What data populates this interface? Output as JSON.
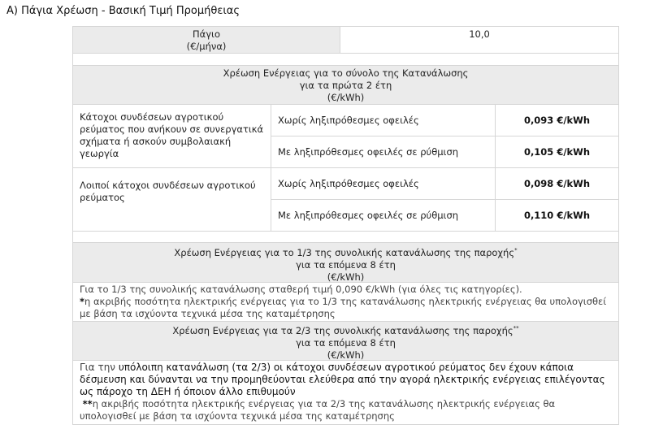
{
  "title": "A) Πάγια Χρέωση - Βασική Τιμή Προμήθειας",
  "fixed": {
    "label1": "Πάγιο",
    "label2": "(€/μήνα)",
    "value": "10,0"
  },
  "section1": {
    "line1": "Χρέωση Ενέργειας για το σύνολο της Κατανάλωσης",
    "line2": "για τα πρώτα 2 έτη",
    "line3": "(€/kWh)"
  },
  "groups": [
    {
      "label": "Κάτοχοι συνδέσεων αγροτικού ρεύματος που ανήκουν σε συνεργατικά σχήματα ή ασκούν συμβολαιακή γεωργία",
      "rows": [
        {
          "desc": "Χωρίς ληξιπρόθεσμες οφειλές",
          "price": "0,093 €/kWh"
        },
        {
          "desc": "Με ληξιπρόθεσμες οφειλές σε ρύθμιση",
          "price": "0,105 €/kWh"
        }
      ]
    },
    {
      "label": "Λοιποί κάτοχοι συνδέσεων αγροτικού ρεύματος",
      "rows": [
        {
          "desc": "Χωρίς ληξιπρόθεσμες οφειλές",
          "price": "0,098 €/kWh"
        },
        {
          "desc": "Με ληξιπρόθεσμες οφειλές σε ρύθμιση",
          "price": "0,110 €/kWh"
        }
      ]
    }
  ],
  "section2": {
    "line1": "Χρέωση Ενέργειας για το 1/3 της συνολικής κατανάλωσης της παροχής",
    "mark": "*",
    "line2": "για τα επόμενα  8 έτη",
    "line3": "(€/kWh)",
    "text": "Για το 1/3 της συνολικής κατανάλωσης σταθερή τιμή 0,090 €/kWh (για όλες τις κατηγορίες).",
    "note_mark": "*",
    "note": "η ακριβής ποσότητα ηλεκτρικής ενέργειας για το 1/3 της κατανάλωσης ηλεκτρικής ενέργειας θα υπολογισθεί με βάση τα ισχύοντα τεχνικά μέσα της καταμέτρησης"
  },
  "section3": {
    "line1": "Χρέωση Ενέργειας για τα 2/3 της συνολικής κατανάλωσης της παροχής",
    "mark": "**",
    "line2": "για τα επόμενα  8 έτη",
    "line3": "(€/kWh)",
    "text_start": "Για την ",
    "text": "υπόλοιπη κατανάλωση (τα 2/3) οι κάτοχοι συνδέσεων αγροτικού ρεύματος δεν έχουν κάποια δέσμευση και δύνανται να την προμηθεύονται ελεύθερα από την αγορά ηλεκτρικής ενέργειας επιλέγοντας ως πάροχο τη ΔΕΗ ή όποιον άλλο επιθυμούν",
    "note_mark": "**",
    "note": "η ακριβής ποσότητα ηλεκτρικής ενέργειας για τα 2/3 της κατανάλωσης ηλεκτρικής ενέργειας θα υπολογισθεί με βάση τα ισχύοντα τεχνικά μέσα της καταμέτρησης"
  }
}
